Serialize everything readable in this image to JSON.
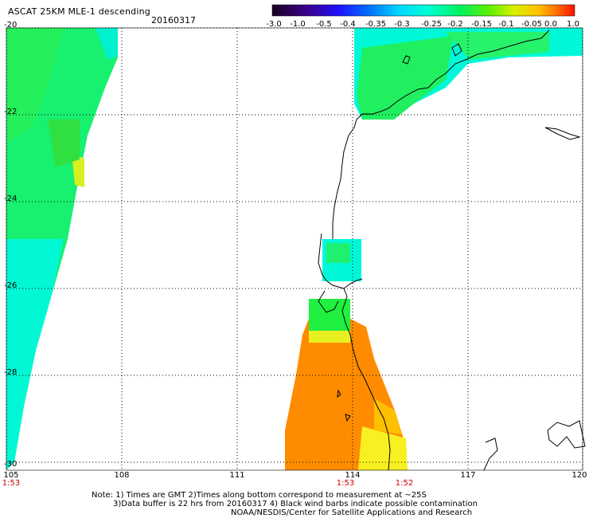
{
  "title": "ASCAT 25KM MLE-1 descending",
  "date": "20160317",
  "colorbar": {
    "labels": [
      "-3.0",
      "-1.0",
      "-0.5",
      "-0.4",
      "-0.35",
      "-0.3",
      "-0.25",
      "-0.2",
      "-0.15",
      "-0.1",
      "-0.05",
      "0.0",
      "1.0"
    ]
  },
  "map": {
    "lat_labels": [
      "-20",
      "-22",
      "-24",
      "-26",
      "-28",
      "-30"
    ],
    "lon_labels": [
      "105",
      "108",
      "111",
      "114",
      "117",
      "120"
    ],
    "lat_range": [
      -30,
      -20
    ],
    "lon_range": [
      105,
      120
    ]
  },
  "times": [
    "1:53",
    "1:53",
    "1:52"
  ],
  "notes": [
    "Note: 1) Times are GMT 2)Times along bottom correspond to measurement at ~25S",
    "3)Data buffer is 22 hrs from 20160317 4) Black wind barbs indicate possible contamination",
    "NOAA/NESDIS/Center for Satellite Applications and Research"
  ]
}
